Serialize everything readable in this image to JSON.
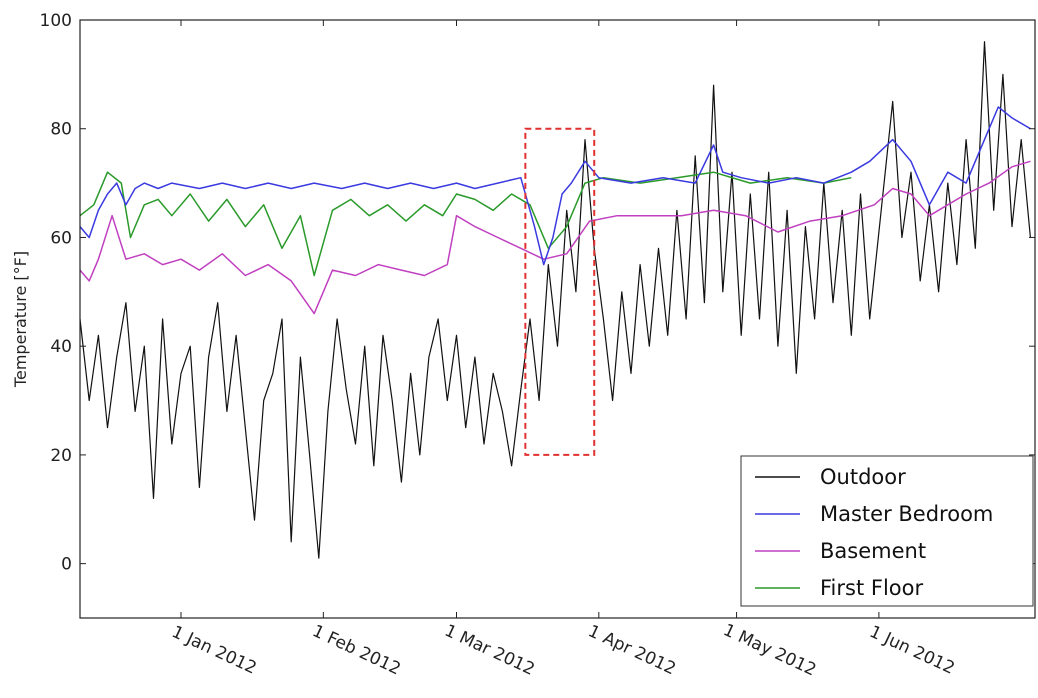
{
  "chart_data": {
    "type": "line",
    "title": "",
    "xlabel": "",
    "ylabel": "Temperature [°F]",
    "ylim": [
      -10,
      100
    ],
    "xlim": [
      "2011-12-10",
      "2012-07-05"
    ],
    "y_ticks": [
      0,
      20,
      40,
      60,
      80,
      100
    ],
    "x_ticks": [
      {
        "date": "2012-01-01",
        "label": "1 Jan 2012"
      },
      {
        "date": "2012-02-01",
        "label": "1 Feb 2012"
      },
      {
        "date": "2012-03-01",
        "label": "1 Mar 2012"
      },
      {
        "date": "2012-04-01",
        "label": "1 Apr 2012"
      },
      {
        "date": "2012-05-01",
        "label": "1 May 2012"
      },
      {
        "date": "2012-06-01",
        "label": "1 Jun 2012"
      }
    ],
    "grid": false,
    "legend_position": "bottom-right",
    "legend": [
      "Outdoor",
      "Master Bedroom",
      "Basement",
      "First Floor"
    ],
    "highlight_box": {
      "x0": "2012-03-16",
      "x1": "2012-03-31",
      "y0": 20,
      "y1": 80,
      "color": "#e03030"
    },
    "series": [
      {
        "name": "Outdoor",
        "color": "#111111",
        "points": [
          [
            "2011-12-10",
            45
          ],
          [
            "2011-12-12",
            30
          ],
          [
            "2011-12-14",
            42
          ],
          [
            "2011-12-16",
            25
          ],
          [
            "2011-12-18",
            38
          ],
          [
            "2011-12-20",
            48
          ],
          [
            "2011-12-22",
            28
          ],
          [
            "2011-12-24",
            40
          ],
          [
            "2011-12-26",
            12
          ],
          [
            "2011-12-28",
            45
          ],
          [
            "2011-12-30",
            22
          ],
          [
            "2012-01-01",
            35
          ],
          [
            "2012-01-03",
            40
          ],
          [
            "2012-01-05",
            14
          ],
          [
            "2012-01-07",
            38
          ],
          [
            "2012-01-09",
            48
          ],
          [
            "2012-01-11",
            28
          ],
          [
            "2012-01-13",
            42
          ],
          [
            "2012-01-15",
            25
          ],
          [
            "2012-01-17",
            8
          ],
          [
            "2012-01-19",
            30
          ],
          [
            "2012-01-21",
            35
          ],
          [
            "2012-01-23",
            45
          ],
          [
            "2012-01-25",
            4
          ],
          [
            "2012-01-27",
            38
          ],
          [
            "2012-01-29",
            20
          ],
          [
            "2012-01-31",
            1
          ],
          [
            "2012-02-02",
            28
          ],
          [
            "2012-02-04",
            45
          ],
          [
            "2012-02-06",
            32
          ],
          [
            "2012-02-08",
            22
          ],
          [
            "2012-02-10",
            40
          ],
          [
            "2012-02-12",
            18
          ],
          [
            "2012-02-14",
            42
          ],
          [
            "2012-02-16",
            30
          ],
          [
            "2012-02-18",
            15
          ],
          [
            "2012-02-20",
            35
          ],
          [
            "2012-02-22",
            20
          ],
          [
            "2012-02-24",
            38
          ],
          [
            "2012-02-26",
            45
          ],
          [
            "2012-02-28",
            30
          ],
          [
            "2012-03-01",
            42
          ],
          [
            "2012-03-03",
            25
          ],
          [
            "2012-03-05",
            38
          ],
          [
            "2012-03-07",
            22
          ],
          [
            "2012-03-09",
            35
          ],
          [
            "2012-03-11",
            28
          ],
          [
            "2012-03-13",
            18
          ],
          [
            "2012-03-15",
            32
          ],
          [
            "2012-03-17",
            45
          ],
          [
            "2012-03-19",
            30
          ],
          [
            "2012-03-21",
            55
          ],
          [
            "2012-03-23",
            40
          ],
          [
            "2012-03-25",
            65
          ],
          [
            "2012-03-27",
            50
          ],
          [
            "2012-03-29",
            78
          ],
          [
            "2012-03-31",
            58
          ],
          [
            "2012-04-02",
            45
          ],
          [
            "2012-04-04",
            30
          ],
          [
            "2012-04-06",
            50
          ],
          [
            "2012-04-08",
            35
          ],
          [
            "2012-04-10",
            55
          ],
          [
            "2012-04-12",
            40
          ],
          [
            "2012-04-14",
            58
          ],
          [
            "2012-04-16",
            42
          ],
          [
            "2012-04-18",
            65
          ],
          [
            "2012-04-20",
            45
          ],
          [
            "2012-04-22",
            75
          ],
          [
            "2012-04-24",
            48
          ],
          [
            "2012-04-26",
            88
          ],
          [
            "2012-04-28",
            50
          ],
          [
            "2012-04-30",
            72
          ],
          [
            "2012-05-02",
            42
          ],
          [
            "2012-05-04",
            68
          ],
          [
            "2012-05-06",
            45
          ],
          [
            "2012-05-08",
            72
          ],
          [
            "2012-05-10",
            40
          ],
          [
            "2012-05-12",
            65
          ],
          [
            "2012-05-14",
            35
          ],
          [
            "2012-05-16",
            62
          ],
          [
            "2012-05-18",
            45
          ],
          [
            "2012-05-20",
            70
          ],
          [
            "2012-05-22",
            48
          ],
          [
            "2012-05-24",
            65
          ],
          [
            "2012-05-26",
            42
          ],
          [
            "2012-05-28",
            68
          ],
          [
            "2012-05-30",
            45
          ],
          [
            "2012-06-04",
            85
          ],
          [
            "2012-06-06",
            60
          ],
          [
            "2012-06-08",
            72
          ],
          [
            "2012-06-10",
            52
          ],
          [
            "2012-06-12",
            66
          ],
          [
            "2012-06-14",
            50
          ],
          [
            "2012-06-16",
            70
          ],
          [
            "2012-06-18",
            55
          ],
          [
            "2012-06-20",
            78
          ],
          [
            "2012-06-22",
            58
          ],
          [
            "2012-06-24",
            96
          ],
          [
            "2012-06-26",
            65
          ],
          [
            "2012-06-28",
            90
          ],
          [
            "2012-06-30",
            62
          ],
          [
            "2012-07-02",
            78
          ],
          [
            "2012-07-04",
            60
          ]
        ]
      },
      {
        "name": "Master Bedroom",
        "color": "#3a3ae0",
        "points": [
          [
            "2011-12-10",
            62
          ],
          [
            "2011-12-12",
            60
          ],
          [
            "2011-12-14",
            65
          ],
          [
            "2011-12-16",
            68
          ],
          [
            "2011-12-18",
            70
          ],
          [
            "2011-12-20",
            66
          ],
          [
            "2011-12-22",
            69
          ],
          [
            "2011-12-24",
            70
          ],
          [
            "2011-12-27",
            69
          ],
          [
            "2011-12-30",
            70
          ],
          [
            "2012-01-05",
            69
          ],
          [
            "2012-01-10",
            70
          ],
          [
            "2012-01-15",
            69
          ],
          [
            "2012-01-20",
            70
          ],
          [
            "2012-01-25",
            69
          ],
          [
            "2012-01-30",
            70
          ],
          [
            "2012-02-05",
            69
          ],
          [
            "2012-02-10",
            70
          ],
          [
            "2012-02-15",
            69
          ],
          [
            "2012-02-20",
            70
          ],
          [
            "2012-02-25",
            69
          ],
          [
            "2012-03-01",
            70
          ],
          [
            "2012-03-05",
            69
          ],
          [
            "2012-03-10",
            70
          ],
          [
            "2012-03-15",
            71
          ],
          [
            "2012-03-18",
            62
          ],
          [
            "2012-03-20",
            55
          ],
          [
            "2012-03-22",
            60
          ],
          [
            "2012-03-24",
            68
          ],
          [
            "2012-03-26",
            70
          ],
          [
            "2012-03-29",
            74
          ],
          [
            "2012-04-01",
            71
          ],
          [
            "2012-04-08",
            70
          ],
          [
            "2012-04-15",
            71
          ],
          [
            "2012-04-22",
            70
          ],
          [
            "2012-04-26",
            77
          ],
          [
            "2012-04-28",
            72
          ],
          [
            "2012-05-02",
            71
          ],
          [
            "2012-05-08",
            70
          ],
          [
            "2012-05-14",
            71
          ],
          [
            "2012-05-20",
            70
          ],
          [
            "2012-05-26",
            72
          ],
          [
            "2012-05-30",
            74
          ],
          [
            "2012-06-04",
            78
          ],
          [
            "2012-06-08",
            74
          ],
          [
            "2012-06-12",
            66
          ],
          [
            "2012-06-16",
            72
          ],
          [
            "2012-06-20",
            70
          ],
          [
            "2012-06-24",
            78
          ],
          [
            "2012-06-27",
            84
          ],
          [
            "2012-06-30",
            82
          ],
          [
            "2012-07-04",
            80
          ]
        ]
      },
      {
        "name": "Basement",
        "color": "#c040c0",
        "points": [
          [
            "2011-12-10",
            54
          ],
          [
            "2011-12-12",
            52
          ],
          [
            "2011-12-14",
            56
          ],
          [
            "2011-12-17",
            64
          ],
          [
            "2011-12-20",
            56
          ],
          [
            "2011-12-24",
            57
          ],
          [
            "2011-12-28",
            55
          ],
          [
            "2012-01-01",
            56
          ],
          [
            "2012-01-05",
            54
          ],
          [
            "2012-01-10",
            57
          ],
          [
            "2012-01-15",
            53
          ],
          [
            "2012-01-20",
            55
          ],
          [
            "2012-01-25",
            52
          ],
          [
            "2012-01-30",
            46
          ],
          [
            "2012-02-03",
            54
          ],
          [
            "2012-02-08",
            53
          ],
          [
            "2012-02-13",
            55
          ],
          [
            "2012-02-18",
            54
          ],
          [
            "2012-02-23",
            53
          ],
          [
            "2012-02-28",
            55
          ],
          [
            "2012-03-01",
            64
          ],
          [
            "2012-03-05",
            62
          ],
          [
            "2012-03-10",
            60
          ],
          [
            "2012-03-15",
            58
          ],
          [
            "2012-03-20",
            56
          ],
          [
            "2012-03-25",
            57
          ],
          [
            "2012-03-30",
            63
          ],
          [
            "2012-04-05",
            64
          ],
          [
            "2012-04-12",
            64
          ],
          [
            "2012-04-19",
            64
          ],
          [
            "2012-04-26",
            65
          ],
          [
            "2012-05-03",
            64
          ],
          [
            "2012-05-10",
            61
          ],
          [
            "2012-05-17",
            63
          ],
          [
            "2012-05-24",
            64
          ],
          [
            "2012-05-31",
            66
          ],
          [
            "2012-06-04",
            69
          ],
          [
            "2012-06-08",
            68
          ],
          [
            "2012-06-12",
            64
          ],
          [
            "2012-06-16",
            66
          ],
          [
            "2012-06-20",
            68
          ],
          [
            "2012-06-25",
            70
          ],
          [
            "2012-06-30",
            73
          ],
          [
            "2012-07-04",
            74
          ]
        ]
      },
      {
        "name": "First Floor",
        "color": "#2a9a2a",
        "points": [
          [
            "2011-12-10",
            64
          ],
          [
            "2011-12-13",
            66
          ],
          [
            "2011-12-16",
            72
          ],
          [
            "2011-12-19",
            70
          ],
          [
            "2011-12-21",
            60
          ],
          [
            "2011-12-24",
            66
          ],
          [
            "2011-12-27",
            67
          ],
          [
            "2011-12-30",
            64
          ],
          [
            "2012-01-03",
            68
          ],
          [
            "2012-01-07",
            63
          ],
          [
            "2012-01-11",
            67
          ],
          [
            "2012-01-15",
            62
          ],
          [
            "2012-01-19",
            66
          ],
          [
            "2012-01-23",
            58
          ],
          [
            "2012-01-27",
            64
          ],
          [
            "2012-01-30",
            53
          ],
          [
            "2012-02-03",
            65
          ],
          [
            "2012-02-07",
            67
          ],
          [
            "2012-02-11",
            64
          ],
          [
            "2012-02-15",
            66
          ],
          [
            "2012-02-19",
            63
          ],
          [
            "2012-02-23",
            66
          ],
          [
            "2012-02-27",
            64
          ],
          [
            "2012-03-01",
            68
          ],
          [
            "2012-03-05",
            67
          ],
          [
            "2012-03-09",
            65
          ],
          [
            "2012-03-13",
            68
          ],
          [
            "2012-03-17",
            66
          ],
          [
            "2012-03-21",
            58
          ],
          [
            "2012-03-25",
            62
          ],
          [
            "2012-03-29",
            70
          ],
          [
            "2012-04-02",
            71
          ],
          [
            "2012-04-10",
            70
          ],
          [
            "2012-04-18",
            71
          ],
          [
            "2012-04-26",
            72
          ],
          [
            "2012-05-04",
            70
          ],
          [
            "2012-05-12",
            71
          ],
          [
            "2012-05-20",
            70
          ],
          [
            "2012-05-26",
            71
          ]
        ]
      }
    ]
  }
}
